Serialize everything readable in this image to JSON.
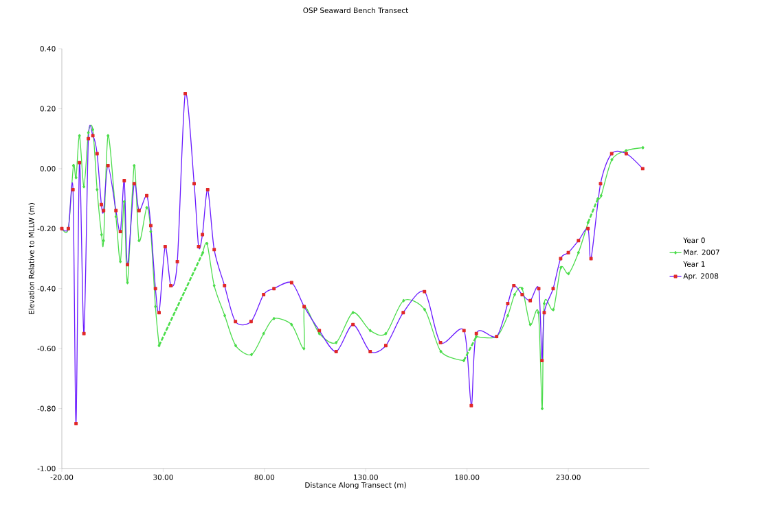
{
  "chart_data": {
    "type": "line",
    "title": "OSP Seaward Bench Transect",
    "xlabel": "Distance Along Transect (m)",
    "ylabel": "Elevation Relative to MLLW (m)",
    "annotations": [
      "Year 0",
      "Year 1"
    ],
    "xlim": [
      -20,
      270
    ],
    "xticks": [
      {
        "value": -20,
        "label": "-20.00"
      },
      {
        "value": 30,
        "label": "30.00"
      },
      {
        "value": 80,
        "label": "80.00"
      },
      {
        "value": 130,
        "label": "130.00"
      },
      {
        "value": 180,
        "label": "180.00"
      },
      {
        "value": 230,
        "label": "230.00"
      }
    ],
    "ylim": [
      -1,
      0.4
    ],
    "yticks": [
      {
        "value": -1,
        "label": "-1.00"
      },
      {
        "value": -0.8,
        "label": "-0.80"
      },
      {
        "value": -0.6,
        "label": "-0.60"
      },
      {
        "value": -0.4,
        "label": "-0.40"
      },
      {
        "value": -0.2,
        "label": "-0.20"
      },
      {
        "value": 0,
        "label": "0.00"
      },
      {
        "value": 0.2,
        "label": "0.20"
      },
      {
        "value": 0.4,
        "label": "0.40"
      }
    ],
    "grid": false,
    "legend": "right",
    "series": [
      {
        "name": "Mar. 2007",
        "color": "#4cdc4c",
        "marker": "diamond",
        "line_style": "solid",
        "x": [
          -20,
          -16.8,
          -14.3,
          -13.0,
          -11.3,
          -9.1,
          -6.9,
          -4.7,
          -2.6,
          -0.4,
          0.6,
          2.8,
          6.7,
          8.9,
          10.8,
          12.4,
          15.7,
          18.1,
          21.9,
          23.9,
          26.2,
          28.0,
          39,
          49.6,
          51.7,
          55.2,
          60.4,
          65.8,
          73.6,
          79.6,
          84.7,
          93.4,
          99.5,
          99.8,
          107.1,
          115.4,
          123.7,
          132.2,
          139.9,
          148.7,
          159.1,
          167.1,
          178.4,
          181.5,
          184.6,
          194.6,
          200.1,
          203.5,
          207.2,
          211.2,
          215.2,
          217.1,
          218.1,
          222.6,
          226.3,
          230.1,
          235.0,
          239.7,
          242.2,
          244.6,
          246.2,
          251.5,
          258.5,
          266.8
        ],
        "values": [
          -0.2,
          -0.2,
          0.01,
          -0.03,
          0.11,
          -0.06,
          0.12,
          0.13,
          -0.07,
          -0.22,
          -0.24,
          0.11,
          -0.16,
          -0.31,
          -0.11,
          -0.38,
          0.01,
          -0.24,
          -0.13,
          -0.21,
          -0.46,
          -0.59,
          null,
          -0.28,
          -0.25,
          -0.39,
          -0.49,
          -0.59,
          -0.62,
          -0.55,
          -0.5,
          -0.52,
          -0.6,
          -0.46,
          -0.55,
          -0.58,
          -0.48,
          -0.54,
          -0.55,
          -0.44,
          -0.47,
          -0.61,
          -0.64,
          null,
          -0.56,
          -0.56,
          -0.49,
          -0.42,
          -0.4,
          -0.52,
          -0.48,
          -0.8,
          -0.45,
          -0.47,
          -0.33,
          -0.35,
          -0.28,
          -0.18,
          null,
          -0.1,
          -0.09,
          0.03,
          0.06,
          0.07
        ]
      },
      {
        "color": "#4ade4a",
        "marker": "none",
        "line_style": "dashed",
        "x": [
          28.0,
          49.6
        ],
        "values": [
          -0.59,
          -0.28
        ]
      },
      {
        "color": "#4bdd4b",
        "marker": "none",
        "line_style": "dashed",
        "x": [
          178.4,
          184.6
        ],
        "values": [
          -0.64,
          -0.56
        ]
      },
      {
        "color": "#4ddb4d",
        "marker": "none",
        "line_style": "dashed",
        "x": [
          239.7,
          244.6
        ],
        "values": [
          -0.18,
          -0.1
        ]
      },
      {
        "name": "Apr. 2008",
        "color": "#6a1aff",
        "marker": "square",
        "line_style": "solid",
        "x": [
          -20,
          -16.8,
          -14.5,
          -13.0,
          -11.3,
          -9.1,
          -6.9,
          -4.7,
          -2.6,
          -0.5,
          0.6,
          2.8,
          6.7,
          8.9,
          10.8,
          12.4,
          15.7,
          18.1,
          21.9,
          23.9,
          26.2,
          28.0,
          31.0,
          33.8,
          37.0,
          40.9,
          45.3,
          47.5,
          49.4,
          52.0,
          55.2,
          60.3,
          65.7,
          73.4,
          79.6,
          84.7,
          93.4,
          99.6,
          107.1,
          115.4,
          123.7,
          132.2,
          139.9,
          148.5,
          159.0,
          166.9,
          178.5,
          182.1,
          184.6,
          194.6,
          200.1,
          203.1,
          207.2,
          211.2,
          215.4,
          217.0,
          218.1,
          222.5,
          226.2,
          230.0,
          235.0,
          239.7,
          241.2,
          245.9,
          251.4,
          258.6,
          266.7
        ],
        "values": [
          -0.2,
          -0.2,
          -0.07,
          -0.85,
          0.02,
          -0.55,
          0.1,
          0.11,
          0.05,
          -0.12,
          -0.14,
          0.01,
          -0.14,
          -0.21,
          -0.04,
          -0.32,
          -0.05,
          -0.14,
          -0.09,
          -0.19,
          -0.4,
          -0.48,
          -0.26,
          -0.39,
          -0.31,
          0.25,
          -0.05,
          -0.26,
          -0.22,
          -0.07,
          -0.27,
          -0.39,
          -0.51,
          -0.51,
          -0.42,
          -0.4,
          -0.38,
          -0.46,
          -0.54,
          -0.61,
          -0.52,
          -0.61,
          -0.59,
          -0.48,
          -0.41,
          -0.58,
          -0.54,
          -0.79,
          -0.55,
          -0.56,
          -0.45,
          -0.39,
          -0.42,
          -0.44,
          -0.4,
          -0.64,
          -0.48,
          -0.4,
          -0.3,
          -0.28,
          -0.24,
          -0.2,
          -0.3,
          -0.05,
          0.05,
          0.05,
          0.0
        ]
      }
    ]
  }
}
